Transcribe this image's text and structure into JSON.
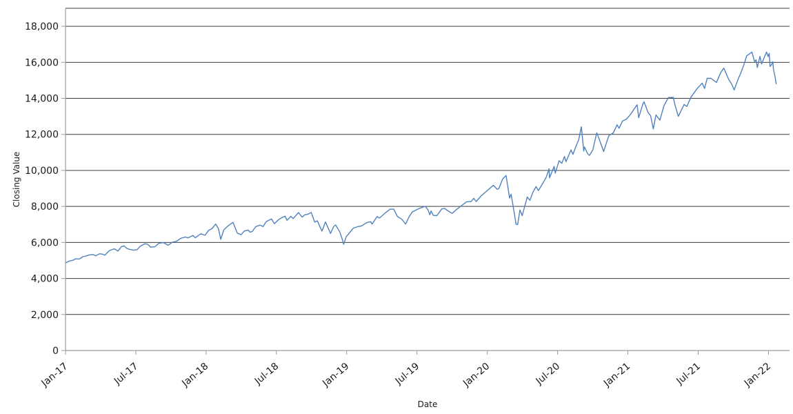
{
  "chart_data": {
    "type": "line",
    "title": "",
    "xlabel": "Date",
    "ylabel": "Closing Value",
    "legend": "none",
    "grid": "horizontal",
    "line_color": "#4f81bd",
    "grid_color": "#3c3c3c",
    "axis_color": "#9a9a9a",
    "xlim": [
      2017.0,
      2022.15
    ],
    "ylim": [
      0,
      19000
    ],
    "x_tick_positions": [
      2017.0,
      2017.5,
      2018.0,
      2018.5,
      2019.0,
      2019.5,
      2020.0,
      2020.5,
      2021.0,
      2021.5,
      2022.0
    ],
    "x_tick_labels": [
      "Jan-17",
      "Jul-17",
      "Jan-18",
      "Jul-18",
      "Jan-19",
      "Jul-19",
      "Jan-20",
      "Jul-20",
      "Jan-21",
      "Jul-21",
      "Jan-22"
    ],
    "y_ticks": [
      0,
      2000,
      4000,
      6000,
      8000,
      10000,
      12000,
      14000,
      16000,
      18000
    ],
    "y_tick_labels": [
      "0",
      "2,000",
      "4,000",
      "6,000",
      "8,000",
      "10,000",
      "12,000",
      "14,000",
      "16,000",
      "18,000"
    ],
    "series": [
      {
        "name": "Closing Value",
        "points": [
          [
            "2017-01-03",
            4880
          ],
          [
            "2017-01-10",
            4960
          ],
          [
            "2017-01-20",
            5010
          ],
          [
            "2017-01-27",
            5090
          ],
          [
            "2017-02-06",
            5080
          ],
          [
            "2017-02-15",
            5210
          ],
          [
            "2017-02-24",
            5250
          ],
          [
            "2017-03-03",
            5300
          ],
          [
            "2017-03-13",
            5330
          ],
          [
            "2017-03-21",
            5260
          ],
          [
            "2017-03-30",
            5370
          ],
          [
            "2017-04-07",
            5350
          ],
          [
            "2017-04-13",
            5290
          ],
          [
            "2017-04-25",
            5550
          ],
          [
            "2017-05-08",
            5650
          ],
          [
            "2017-05-17",
            5520
          ],
          [
            "2017-05-26",
            5760
          ],
          [
            "2017-06-02",
            5810
          ],
          [
            "2017-06-09",
            5670
          ],
          [
            "2017-06-16",
            5620
          ],
          [
            "2017-06-27",
            5570
          ],
          [
            "2017-07-06",
            5600
          ],
          [
            "2017-07-14",
            5790
          ],
          [
            "2017-07-26",
            5930
          ],
          [
            "2017-08-03",
            5890
          ],
          [
            "2017-08-10",
            5740
          ],
          [
            "2017-08-21",
            5760
          ],
          [
            "2017-09-01",
            5960
          ],
          [
            "2017-09-12",
            5990
          ],
          [
            "2017-09-25",
            5840
          ],
          [
            "2017-10-05",
            6010
          ],
          [
            "2017-10-17",
            6070
          ],
          [
            "2017-10-27",
            6230
          ],
          [
            "2017-11-08",
            6300
          ],
          [
            "2017-11-15",
            6250
          ],
          [
            "2017-11-28",
            6390
          ],
          [
            "2017-12-04",
            6260
          ],
          [
            "2017-12-18",
            6480
          ],
          [
            "2017-12-29",
            6400
          ],
          [
            "2018-01-02",
            6510
          ],
          [
            "2018-01-08",
            6680
          ],
          [
            "2018-01-16",
            6760
          ],
          [
            "2018-01-26",
            7020
          ],
          [
            "2018-02-02",
            6770
          ],
          [
            "2018-02-08",
            6170
          ],
          [
            "2018-02-16",
            6700
          ],
          [
            "2018-02-26",
            6900
          ],
          [
            "2018-03-09",
            7080
          ],
          [
            "2018-03-12",
            7110
          ],
          [
            "2018-03-23",
            6520
          ],
          [
            "2018-04-02",
            6430
          ],
          [
            "2018-04-10",
            6630
          ],
          [
            "2018-04-20",
            6690
          ],
          [
            "2018-04-25",
            6570
          ],
          [
            "2018-05-01",
            6610
          ],
          [
            "2018-05-10",
            6880
          ],
          [
            "2018-05-21",
            6960
          ],
          [
            "2018-05-29",
            6880
          ],
          [
            "2018-06-06",
            7150
          ],
          [
            "2018-06-20",
            7310
          ],
          [
            "2018-06-27",
            7040
          ],
          [
            "2018-07-09",
            7280
          ],
          [
            "2018-07-17",
            7380
          ],
          [
            "2018-07-25",
            7460
          ],
          [
            "2018-07-30",
            7230
          ],
          [
            "2018-08-09",
            7450
          ],
          [
            "2018-08-15",
            7320
          ],
          [
            "2018-08-29",
            7660
          ],
          [
            "2018-09-07",
            7410
          ],
          [
            "2018-09-14",
            7530
          ],
          [
            "2018-09-21",
            7560
          ],
          [
            "2018-10-01",
            7660
          ],
          [
            "2018-10-10",
            7130
          ],
          [
            "2018-10-17",
            7200
          ],
          [
            "2018-10-24",
            6850
          ],
          [
            "2018-10-29",
            6630
          ],
          [
            "2018-11-07",
            7140
          ],
          [
            "2018-11-20",
            6500
          ],
          [
            "2018-11-28",
            6880
          ],
          [
            "2018-12-03",
            6970
          ],
          [
            "2018-12-14",
            6590
          ],
          [
            "2018-12-21",
            6150
          ],
          [
            "2018-12-24",
            5900
          ],
          [
            "2018-12-31",
            6330
          ],
          [
            "2019-01-04",
            6420
          ],
          [
            "2019-01-18",
            6790
          ],
          [
            "2019-01-30",
            6880
          ],
          [
            "2019-02-08",
            6910
          ],
          [
            "2019-02-22",
            7100
          ],
          [
            "2019-03-04",
            7150
          ],
          [
            "2019-03-08",
            7020
          ],
          [
            "2019-03-21",
            7440
          ],
          [
            "2019-03-27",
            7350
          ],
          [
            "2019-04-10",
            7620
          ],
          [
            "2019-04-24",
            7850
          ],
          [
            "2019-05-03",
            7850
          ],
          [
            "2019-05-13",
            7430
          ],
          [
            "2019-05-23",
            7310
          ],
          [
            "2019-06-03",
            7020
          ],
          [
            "2019-06-11",
            7380
          ],
          [
            "2019-06-20",
            7690
          ],
          [
            "2019-07-01",
            7810
          ],
          [
            "2019-07-10",
            7900
          ],
          [
            "2019-07-24",
            8010
          ],
          [
            "2019-07-31",
            7820
          ],
          [
            "2019-08-05",
            7530
          ],
          [
            "2019-08-08",
            7750
          ],
          [
            "2019-08-14",
            7500
          ],
          [
            "2019-08-23",
            7490
          ],
          [
            "2019-09-05",
            7860
          ],
          [
            "2019-09-12",
            7890
          ],
          [
            "2019-09-24",
            7710
          ],
          [
            "2019-10-02",
            7610
          ],
          [
            "2019-10-11",
            7790
          ],
          [
            "2019-10-25",
            8030
          ],
          [
            "2019-11-08",
            8250
          ],
          [
            "2019-11-20",
            8270
          ],
          [
            "2019-11-27",
            8450
          ],
          [
            "2019-12-03",
            8270
          ],
          [
            "2019-12-16",
            8580
          ],
          [
            "2019-12-27",
            8790
          ],
          [
            "2020-01-09",
            9030
          ],
          [
            "2020-01-17",
            9170
          ],
          [
            "2020-01-27",
            8950
          ],
          [
            "2020-01-31",
            8990
          ],
          [
            "2020-02-10",
            9520
          ],
          [
            "2020-02-19",
            9720
          ],
          [
            "2020-02-28",
            8460
          ],
          [
            "2020-03-03",
            8680
          ],
          [
            "2020-03-12",
            7540
          ],
          [
            "2020-03-16",
            7010
          ],
          [
            "2020-03-20",
            6990
          ],
          [
            "2020-03-26",
            7800
          ],
          [
            "2020-04-01",
            7490
          ],
          [
            "2020-04-14",
            8520
          ],
          [
            "2020-04-21",
            8340
          ],
          [
            "2020-04-29",
            8790
          ],
          [
            "2020-05-07",
            9100
          ],
          [
            "2020-05-13",
            8880
          ],
          [
            "2020-05-26",
            9340
          ],
          [
            "2020-06-02",
            9600
          ],
          [
            "2020-06-10",
            10090
          ],
          [
            "2020-06-11",
            9590
          ],
          [
            "2020-06-23",
            10220
          ],
          [
            "2020-06-26",
            9850
          ],
          [
            "2020-07-06",
            10540
          ],
          [
            "2020-07-13",
            10390
          ],
          [
            "2020-07-20",
            10770
          ],
          [
            "2020-07-24",
            10480
          ],
          [
            "2020-08-06",
            11140
          ],
          [
            "2020-08-11",
            10890
          ],
          [
            "2020-08-19",
            11340
          ],
          [
            "2020-08-26",
            11700
          ],
          [
            "2020-09-02",
            12420
          ],
          [
            "2020-09-08",
            11070
          ],
          [
            "2020-09-10",
            11300
          ],
          [
            "2020-09-18",
            10940
          ],
          [
            "2020-09-23",
            10830
          ],
          [
            "2020-10-02",
            11150
          ],
          [
            "2020-10-12",
            12090
          ],
          [
            "2020-10-19",
            11700
          ],
          [
            "2020-10-30",
            11050
          ],
          [
            "2020-11-09",
            11710
          ],
          [
            "2020-11-13",
            11940
          ],
          [
            "2020-11-24",
            12080
          ],
          [
            "2020-12-04",
            12530
          ],
          [
            "2020-12-09",
            12340
          ],
          [
            "2020-12-18",
            12740
          ],
          [
            "2020-12-28",
            12840
          ],
          [
            "2021-01-08",
            13110
          ],
          [
            "2021-01-22",
            13560
          ],
          [
            "2021-01-25",
            13640
          ],
          [
            "2021-01-29",
            12930
          ],
          [
            "2021-02-09",
            13690
          ],
          [
            "2021-02-12",
            13810
          ],
          [
            "2021-02-23",
            13190
          ],
          [
            "2021-03-01",
            13040
          ],
          [
            "2021-03-08",
            12300
          ],
          [
            "2021-03-15",
            13080
          ],
          [
            "2021-03-25",
            12790
          ],
          [
            "2021-04-05",
            13600
          ],
          [
            "2021-04-16",
            14040
          ],
          [
            "2021-04-29",
            14050
          ],
          [
            "2021-05-04",
            13580
          ],
          [
            "2021-05-12",
            13000
          ],
          [
            "2021-05-27",
            13660
          ],
          [
            "2021-06-03",
            13550
          ],
          [
            "2021-06-14",
            14070
          ],
          [
            "2021-06-30",
            14550
          ],
          [
            "2021-07-13",
            14840
          ],
          [
            "2021-07-19",
            14550
          ],
          [
            "2021-07-26",
            15110
          ],
          [
            "2021-08-05",
            15110
          ],
          [
            "2021-08-19",
            14880
          ],
          [
            "2021-08-30",
            15430
          ],
          [
            "2021-09-07",
            15680
          ],
          [
            "2021-09-20",
            15040
          ],
          [
            "2021-09-28",
            14770
          ],
          [
            "2021-10-04",
            14470
          ],
          [
            "2021-10-14",
            15050
          ],
          [
            "2021-10-20",
            15340
          ],
          [
            "2021-10-29",
            15850
          ],
          [
            "2021-11-05",
            16350
          ],
          [
            "2021-11-19",
            16570
          ],
          [
            "2021-11-26",
            16030
          ],
          [
            "2021-11-30",
            16140
          ],
          [
            "2021-12-03",
            15710
          ],
          [
            "2021-12-10",
            16330
          ],
          [
            "2021-12-14",
            15910
          ],
          [
            "2021-12-27",
            16570
          ],
          [
            "2021-12-31",
            16320
          ],
          [
            "2022-01-03",
            16500
          ],
          [
            "2022-01-05",
            15770
          ],
          [
            "2022-01-10",
            15910
          ],
          [
            "2022-01-12",
            16030
          ],
          [
            "2022-01-14",
            15610
          ],
          [
            "2022-01-18",
            15210
          ],
          [
            "2022-01-21",
            14800
          ]
        ]
      }
    ]
  }
}
